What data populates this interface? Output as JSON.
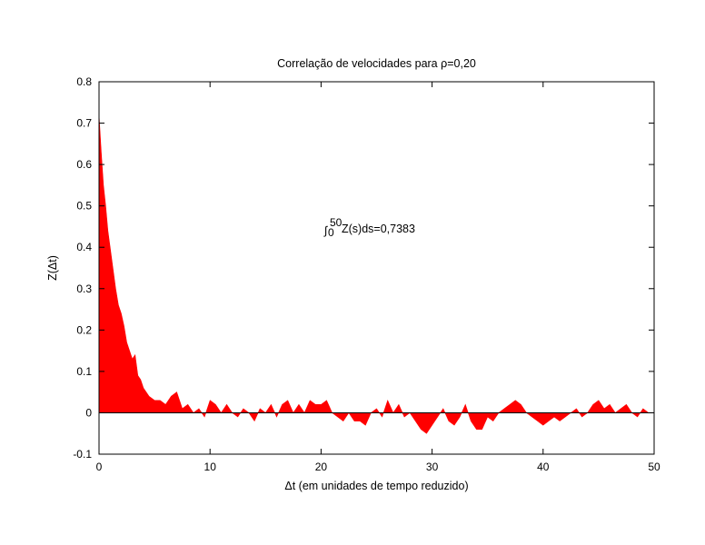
{
  "chart_data": {
    "type": "area",
    "title": "Correlação de velocidades para ρ=0,20",
    "xlabel": "Δt (em unidades de tempo reduzido)",
    "ylabel": "Z(Δt)",
    "xlim": [
      0,
      50
    ],
    "ylim": [
      -0.1,
      0.8
    ],
    "xticks": [
      0,
      10,
      20,
      30,
      40,
      50
    ],
    "xtick_labels": [
      "0",
      "10",
      "20",
      "30",
      "40",
      "50"
    ],
    "yticks": [
      -0.1,
      0,
      0.1,
      0.2,
      0.3,
      0.4,
      0.5,
      0.6,
      0.7,
      0.8
    ],
    "ytick_labels": [
      "-0.1",
      "0",
      "0.1",
      "0.2",
      "0.3",
      "0.4",
      "0.5",
      "0.6",
      "0.7",
      "0.8"
    ],
    "annotation": {
      "integral_symbol": "∫",
      "upper_limit": "50",
      "lower_limit": "0",
      "text": "Z(s)ds=0,7383"
    },
    "grid": false,
    "legend": "none",
    "fill_color": "#ff0000",
    "zero_line": true,
    "series": [
      {
        "x": [
          0,
          0.2,
          0.4,
          0.6,
          0.8,
          1.0,
          1.25,
          1.5,
          1.75,
          2.0,
          2.25,
          2.5,
          2.75,
          3.0,
          3.25,
          3.5,
          3.75,
          4.0,
          4.5,
          5.0,
          5.5,
          6.0,
          6.5,
          7.0,
          7.5,
          8.0,
          8.5,
          9.0,
          9.5,
          10.0,
          10.5,
          11.0,
          11.5,
          12.0,
          12.5,
          13.0,
          13.5,
          14.0,
          14.5,
          15.0,
          15.5,
          16.0,
          16.5,
          17.0,
          17.5,
          18.0,
          18.5,
          19.0,
          19.5,
          20.0,
          20.5,
          21.0,
          21.5,
          22.0,
          22.5,
          23.0,
          23.5,
          24.0,
          24.5,
          25.0,
          25.5,
          26.0,
          26.5,
          27.0,
          27.5,
          28.0,
          28.5,
          29.0,
          29.5,
          30.0,
          30.5,
          31.0,
          31.5,
          32.0,
          32.5,
          33.0,
          33.5,
          34.0,
          34.5,
          35.0,
          35.5,
          36.0,
          36.5,
          37.0,
          37.5,
          38.0,
          38.5,
          39.0,
          39.5,
          40.0,
          40.5,
          41.0,
          41.5,
          42.0,
          42.5,
          43.0,
          43.5,
          44.0,
          44.5,
          45.0,
          45.5,
          46.0,
          46.5,
          47.0,
          47.5,
          48.0,
          48.5,
          49.0,
          49.5,
          50.0
        ],
        "y": [
          0.72,
          0.63,
          0.55,
          0.5,
          0.44,
          0.4,
          0.35,
          0.3,
          0.26,
          0.24,
          0.21,
          0.17,
          0.15,
          0.13,
          0.14,
          0.09,
          0.08,
          0.06,
          0.04,
          0.03,
          0.03,
          0.02,
          0.04,
          0.05,
          0.01,
          0.02,
          0.0,
          0.01,
          -0.01,
          0.03,
          0.02,
          0.0,
          0.02,
          0.0,
          -0.01,
          0.01,
          0.0,
          -0.02,
          0.01,
          0.0,
          0.02,
          -0.01,
          0.02,
          0.03,
          0.0,
          0.02,
          0.0,
          0.03,
          0.02,
          0.02,
          0.03,
          0.0,
          -0.01,
          -0.02,
          0.0,
          -0.02,
          -0.02,
          -0.03,
          0.0,
          0.01,
          -0.01,
          0.03,
          0.0,
          0.02,
          -0.01,
          0.0,
          -0.02,
          -0.04,
          -0.05,
          -0.03,
          -0.01,
          0.01,
          -0.02,
          -0.03,
          -0.01,
          0.02,
          -0.02,
          -0.04,
          -0.04,
          -0.01,
          -0.02,
          0.0,
          0.01,
          0.02,
          0.03,
          0.02,
          0.0,
          -0.01,
          -0.02,
          -0.03,
          -0.02,
          -0.01,
          -0.02,
          -0.01,
          0.0,
          0.01,
          -0.01,
          0.0,
          0.02,
          0.03,
          0.01,
          0.02,
          0.0,
          0.01,
          0.02,
          0.0,
          -0.01,
          0.01,
          0.0,
          0.0
        ]
      }
    ]
  }
}
